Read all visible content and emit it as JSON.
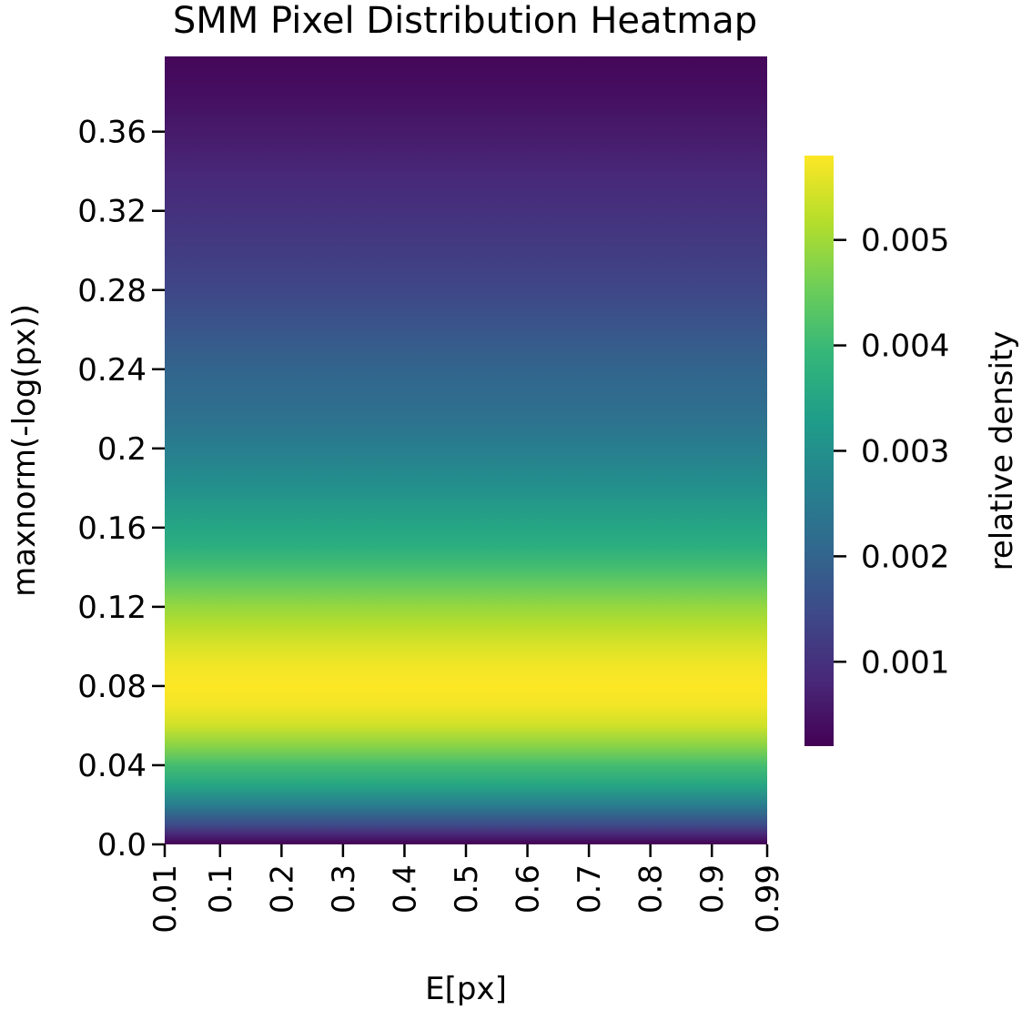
{
  "chart_data": {
    "type": "heatmap",
    "title": "SMM Pixel Distribution Heatmap",
    "xlabel": "E[px]",
    "ylabel": "maxnorm(-log(px))",
    "colorbar_label": "relative density",
    "colormap": "viridis",
    "x_tick_labels": [
      "0.01",
      "0.1",
      "0.2",
      "0.3",
      "0.4",
      "0.5",
      "0.6",
      "0.7",
      "0.8",
      "0.9",
      "0.99"
    ],
    "x_tick_values": [
      0.01,
      0.1,
      0.2,
      0.3,
      0.4,
      0.5,
      0.6,
      0.7,
      0.8,
      0.9,
      0.99
    ],
    "y_tick_labels": [
      "0.0",
      "0.04",
      "0.08",
      "0.12",
      "0.16",
      "0.2",
      "0.24",
      "0.28",
      "0.32",
      "0.36"
    ],
    "y_tick_values": [
      0.0,
      0.04,
      0.08,
      0.12,
      0.16,
      0.2,
      0.24,
      0.28,
      0.32,
      0.36
    ],
    "xlim": [
      0.01,
      0.99
    ],
    "ylim": [
      0.0,
      0.398
    ],
    "colorbar_ticks": [
      "0.001",
      "0.002",
      "0.003",
      "0.004",
      "0.005"
    ],
    "colorbar_tick_values": [
      0.001,
      0.002,
      0.003,
      0.004,
      0.005
    ],
    "colorbar_range": [
      0.0002,
      0.0058
    ],
    "row_profile": {
      "y": [
        0.0,
        0.005,
        0.01,
        0.02,
        0.03,
        0.04,
        0.05,
        0.06,
        0.07,
        0.08,
        0.09,
        0.1,
        0.11,
        0.12,
        0.13,
        0.14,
        0.15,
        0.16,
        0.18,
        0.2,
        0.22,
        0.24,
        0.26,
        0.28,
        0.3,
        0.32,
        0.34,
        0.36,
        0.38,
        0.398
      ],
      "density": [
        0.0002,
        0.0008,
        0.0015,
        0.0026,
        0.0035,
        0.0041,
        0.0048,
        0.0054,
        0.0057,
        0.0058,
        0.0057,
        0.0055,
        0.0052,
        0.0049,
        0.0045,
        0.0041,
        0.0037,
        0.0035,
        0.003,
        0.0026,
        0.0022,
        0.002,
        0.0017,
        0.0014,
        0.0012,
        0.001,
        0.0008,
        0.0006,
        0.0004,
        0.0003
      ]
    },
    "note_x_variation": "constant",
    "grid": false
  },
  "colors": {
    "viridis_stops": [
      "#440154",
      "#482878",
      "#3e4989",
      "#31688e",
      "#26828e",
      "#1f9e89",
      "#35b779",
      "#6ece58",
      "#b5de2b",
      "#fde725"
    ],
    "axis": "#000000",
    "background": "#ffffff"
  }
}
